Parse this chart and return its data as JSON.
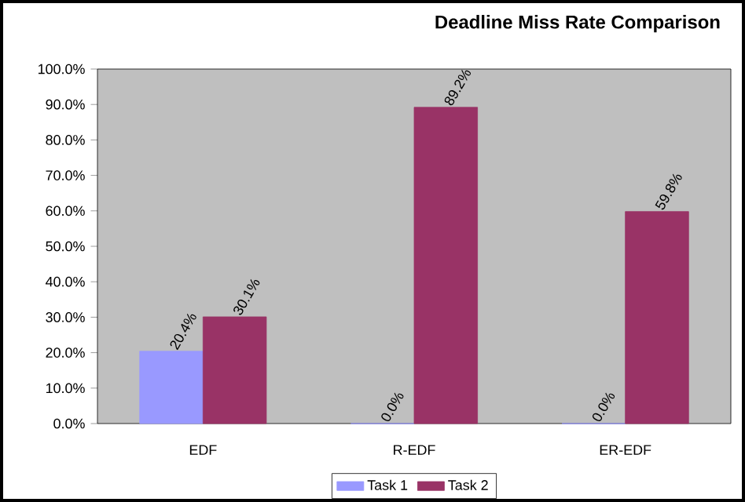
{
  "chart_data": {
    "type": "bar",
    "title": "Deadline Miss Rate Comparison",
    "categories": [
      "EDF",
      "R-EDF",
      "ER-EDF"
    ],
    "series": [
      {
        "name": "Task 1",
        "color": "#9999ff",
        "values": [
          20.4,
          0.0,
          0.0
        ],
        "value_labels": [
          "20.4%",
          "0.0%",
          "0.0%"
        ]
      },
      {
        "name": "Task 2",
        "color": "#993366",
        "values": [
          30.1,
          89.2,
          59.8
        ],
        "value_labels": [
          "30.1%",
          "89.2%",
          "59.8%"
        ]
      }
    ],
    "ylim": [
      0,
      100
    ],
    "yticks": [
      {
        "value": 0,
        "label": "0.0%"
      },
      {
        "value": 10,
        "label": "10.0%"
      },
      {
        "value": 20,
        "label": "20.0%"
      },
      {
        "value": 30,
        "label": "30.0%"
      },
      {
        "value": 40,
        "label": "40.0%"
      },
      {
        "value": 50,
        "label": "50.0%"
      },
      {
        "value": 60,
        "label": "60.0%"
      },
      {
        "value": 70,
        "label": "70.0%"
      },
      {
        "value": 80,
        "label": "80.0%"
      },
      {
        "value": 90,
        "label": "90.0%"
      },
      {
        "value": 100,
        "label": "100.0%"
      }
    ],
    "grid": false,
    "legend": "bottom"
  }
}
